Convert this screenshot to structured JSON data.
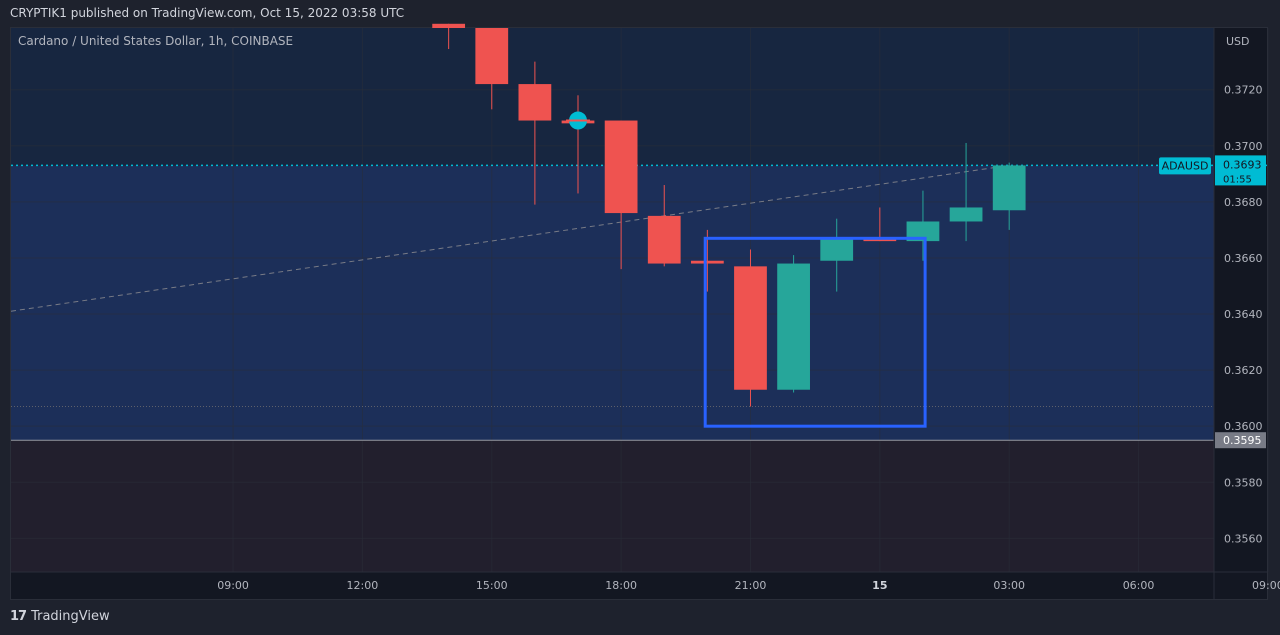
{
  "header": {
    "published": "CRYPTIK1 published on TradingView.com, Oct 15, 2022 03:58 UTC"
  },
  "chart_data": {
    "type": "candlestick",
    "title": "Cardano / United States Dollar, 1h, COINBASE",
    "currency": "USD",
    "symbol_label": "ADAUSD",
    "current_price": "0.3693",
    "countdown": "01:55",
    "level_price": "0.3595",
    "y_ticks": [
      "0.3720",
      "0.3700",
      "0.3680",
      "0.3660",
      "0.3640",
      "0.3620",
      "0.3600",
      "0.3580",
      "0.3560"
    ],
    "y_tick_values": [
      0.372,
      0.37,
      0.368,
      0.366,
      0.364,
      0.362,
      0.36,
      0.358,
      0.356
    ],
    "x_ticks": [
      "09:00",
      "12:00",
      "15:00",
      "18:00",
      "21:00",
      "15",
      "03:00",
      "06:00",
      "09:00"
    ],
    "x_tick_hours": [
      9,
      12,
      15,
      18,
      21,
      24,
      27,
      30,
      33
    ],
    "bold_x_tick_index": 5,
    "ylim": [
      0.3548,
      0.3742
    ],
    "xlim": [
      3.85,
      31.75
    ],
    "candles": [
      {
        "t": 14,
        "o": 0.37435,
        "h": 0.37435,
        "l": 0.37345,
        "c": 0.3742
      },
      {
        "t": 15,
        "o": 0.3742,
        "h": 0.3742,
        "l": 0.3713,
        "c": 0.3722
      },
      {
        "t": 16,
        "o": 0.3722,
        "h": 0.373,
        "l": 0.3679,
        "c": 0.3709
      },
      {
        "t": 17,
        "o": 0.3709,
        "h": 0.3718,
        "l": 0.3683,
        "c": 0.3708
      },
      {
        "t": 18,
        "o": 0.3709,
        "h": 0.3709,
        "l": 0.3656,
        "c": 0.3676
      },
      {
        "t": 19,
        "o": 0.3675,
        "h": 0.3686,
        "l": 0.3657,
        "c": 0.3658
      },
      {
        "t": 20,
        "o": 0.3659,
        "h": 0.367,
        "l": 0.3648,
        "c": 0.3658
      },
      {
        "t": 21,
        "o": 0.3657,
        "h": 0.3663,
        "l": 0.3607,
        "c": 0.3613
      },
      {
        "t": 22,
        "o": 0.3613,
        "h": 0.3661,
        "l": 0.3612,
        "c": 0.3658
      },
      {
        "t": 23,
        "o": 0.3659,
        "h": 0.3674,
        "l": 0.3648,
        "c": 0.3667
      },
      {
        "t": 24,
        "o": 0.3667,
        "h": 0.3678,
        "l": 0.3666,
        "c": 0.3666
      },
      {
        "t": 25,
        "o": 0.3666,
        "h": 0.3684,
        "l": 0.3659,
        "c": 0.3673
      },
      {
        "t": 26,
        "o": 0.3673,
        "h": 0.3701,
        "l": 0.3666,
        "c": 0.3678
      },
      {
        "t": 27,
        "o": 0.3677,
        "h": 0.3694,
        "l": 0.367,
        "c": 0.3693
      }
    ],
    "annotations": {
      "current_price_line": 0.3693,
      "upper_zone_bottom": 0.3595,
      "lower_dotted_line": 0.3607,
      "trend_line": {
        "t1": 3.85,
        "p1": 0.3641,
        "t2": 27.0,
        "p2": 0.3693
      },
      "marker": {
        "t": 17,
        "p": 0.3709
      },
      "highlight_box": {
        "t1": 19.95,
        "p1": 0.3667,
        "t2": 25.05,
        "p2": 0.36
      }
    },
    "colors": {
      "up": "#26a69a",
      "down": "#ef5350",
      "background": "#131722",
      "zone": "#1c2f59",
      "lower_zone": "#221f2d",
      "grid": "#2a2e39",
      "price_line": "#00bcd4",
      "box": "#2962ff",
      "marker": "#00bcd4",
      "level_label": "#787b86"
    }
  },
  "footer": {
    "brand": "TradingView",
    "logo_text": "17"
  }
}
